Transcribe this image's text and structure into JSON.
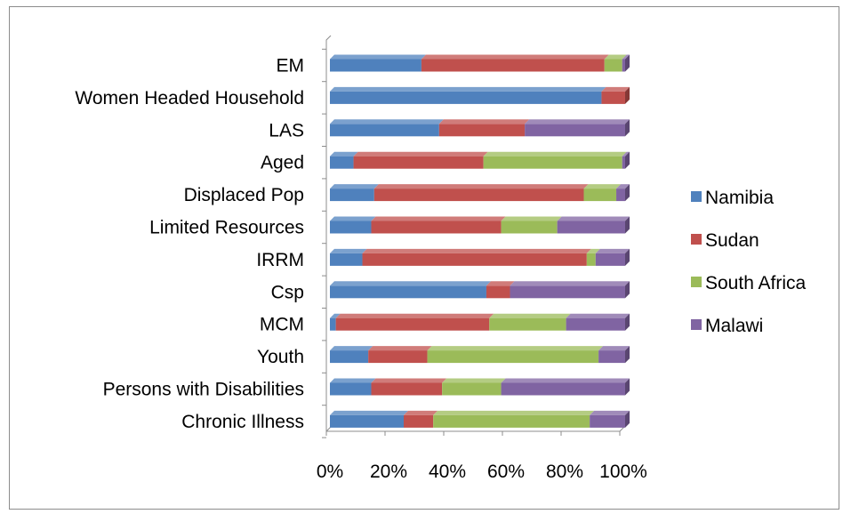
{
  "chart_data": {
    "type": "bar",
    "orientation": "horizontal",
    "stacking": "percent",
    "categories": [
      "EM",
      "Women Headed Household",
      "LAS",
      "Aged",
      "Displaced Pop",
      "Limited Resources",
      "IRRM",
      "Csp",
      "MCM",
      "Youth",
      "Persons with Disabilities",
      "Chronic Illness"
    ],
    "series": [
      {
        "name": "Namibia",
        "color": "#4f81bd",
        "values": [
          31,
          92,
          37,
          8,
          15,
          14,
          11,
          53,
          2,
          13,
          14,
          25
        ]
      },
      {
        "name": "Sudan",
        "color": "#c0504d",
        "values": [
          62,
          8,
          29,
          44,
          71,
          44,
          76,
          8,
          52,
          20,
          24,
          10
        ]
      },
      {
        "name": "South Africa",
        "color": "#9bbb59",
        "values": [
          6,
          0,
          0,
          47,
          11,
          19,
          3,
          0,
          26,
          58,
          20,
          53
        ]
      },
      {
        "name": "Malawi",
        "color": "#8064a2",
        "values": [
          1,
          0,
          34,
          1,
          3,
          23,
          10,
          39,
          20,
          9,
          42,
          12
        ]
      }
    ],
    "x_ticks": [
      "0%",
      "20%",
      "40%",
      "60%",
      "80%",
      "100%"
    ],
    "xlim": [
      0,
      100
    ],
    "title": "",
    "xlabel": "",
    "ylabel": "",
    "grid": false,
    "legend_position": "right",
    "style": "3d-bars"
  }
}
